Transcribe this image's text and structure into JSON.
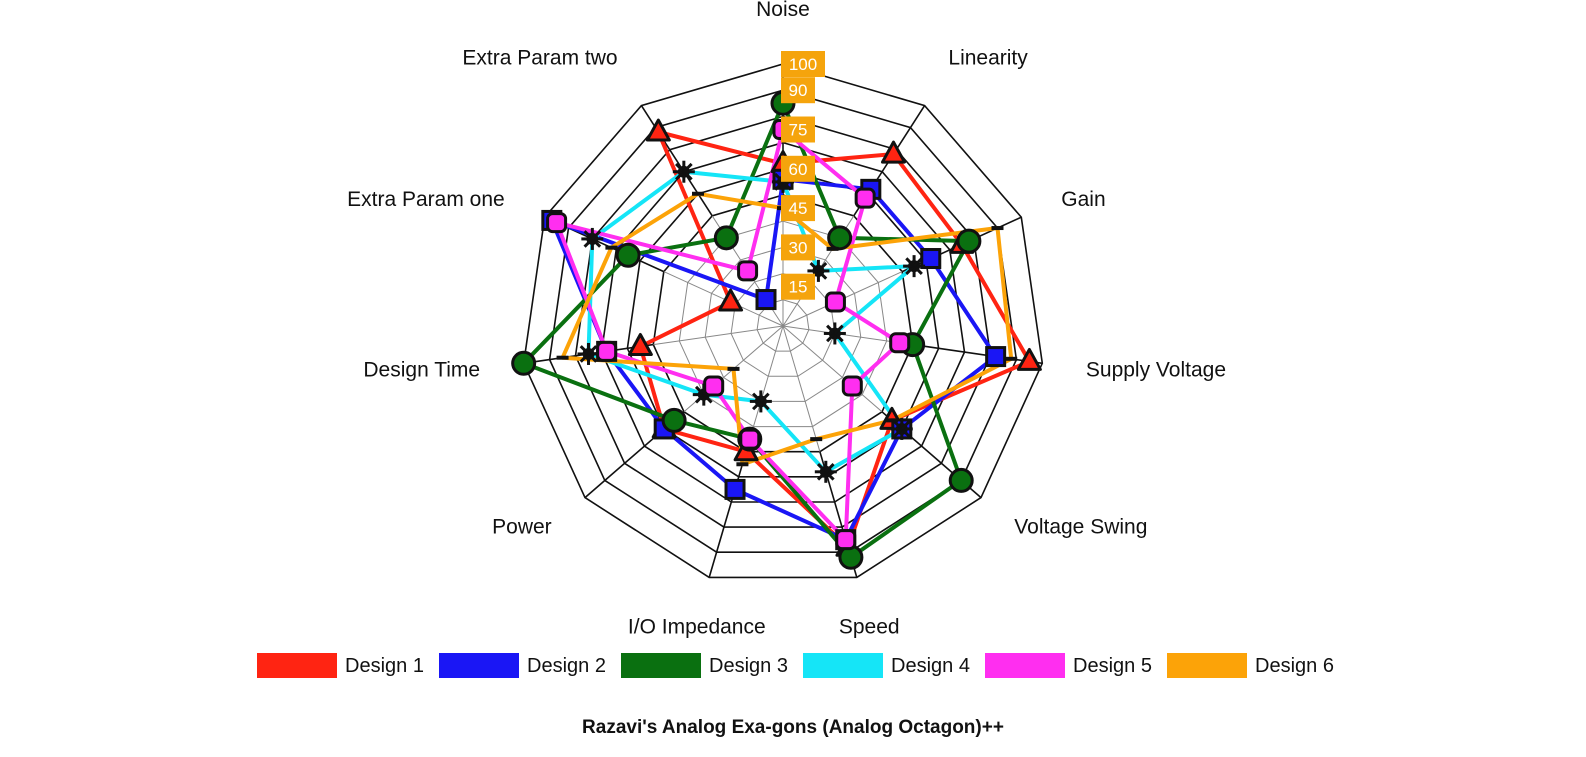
{
  "chart_data": {
    "type": "radar",
    "title": "Razavi's Analog Exa-gons (Analog Octagon)++",
    "axes": [
      "Noise",
      "Linearity",
      "Gain",
      "Supply Voltage",
      "Voltage Swing",
      "Speed",
      "I/O Impedance",
      "Power",
      "Design Time",
      "Extra Param one",
      "Extra Param two"
    ],
    "rlim": [
      0,
      100
    ],
    "ticks": [
      15,
      30,
      45,
      60,
      75,
      90,
      100
    ],
    "tick_labels": [
      "15",
      "30",
      "45",
      "60",
      "75",
      "90",
      "100"
    ],
    "tick_label_color": "#f5a40c",
    "grid": true,
    "legend_position": "bottom",
    "series": [
      {
        "name": "Design 1",
        "color": "#ff2412",
        "marker": "triangle",
        "values": [
          62,
          78,
          75,
          95,
          55,
          88,
          50,
          60,
          55,
          22,
          88
        ]
      },
      {
        "name": "Design 2",
        "color": "#1a16f5",
        "marker": "square",
        "values": [
          56,
          62,
          62,
          82,
          60,
          85,
          65,
          60,
          68,
          97,
          12
        ]
      },
      {
        "name": "Design 3",
        "color": "#0a7010",
        "marker": "circle",
        "values": [
          85,
          40,
          78,
          50,
          90,
          92,
          45,
          55,
          100,
          65,
          40
        ]
      },
      {
        "name": "Design 4",
        "color": "#15e5f7",
        "marker": "asterisk",
        "values": [
          55,
          25,
          55,
          20,
          60,
          58,
          30,
          40,
          75,
          80,
          70
        ]
      },
      {
        "name": "Design 5",
        "color": "#ff2ef0",
        "marker": "rounded-square",
        "values": [
          75,
          58,
          22,
          45,
          35,
          85,
          45,
          35,
          68,
          95,
          25
        ]
      },
      {
        "name": "Design 6",
        "color": "#fca308",
        "marker": "dash",
        "values": [
          45,
          35,
          90,
          88,
          55,
          45,
          55,
          25,
          85,
          72,
          60
        ]
      }
    ]
  }
}
